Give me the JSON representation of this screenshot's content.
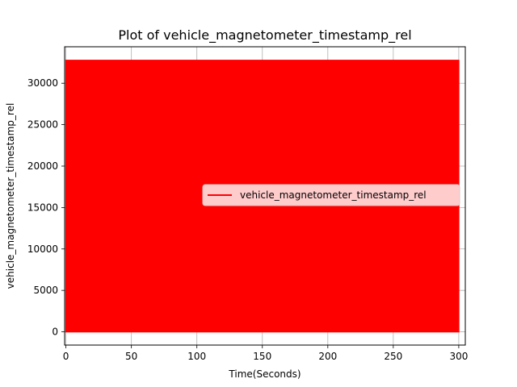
{
  "chart_data": {
    "type": "line",
    "title": "Plot of vehicle_magnetometer_timestamp_rel",
    "xlabel": "Time(Seconds)",
    "ylabel": "vehicle_magnetometer_timestamp_rel",
    "xlim": [
      -1,
      305
    ],
    "ylim": [
      -1600,
      34400
    ],
    "x_ticks": [
      0,
      50,
      100,
      150,
      200,
      250,
      300
    ],
    "y_ticks": [
      0,
      5000,
      10000,
      15000,
      20000,
      25000,
      30000
    ],
    "grid": true,
    "legend_position": "center-right",
    "series": [
      {
        "name": "vehicle_magnetometer_timestamp_rel",
        "color": "#ff0000",
        "x_range": [
          0,
          300
        ],
        "min_value": 0,
        "max_value": 32760,
        "description_of_values": "dense oscillation between min and max over full time range"
      }
    ]
  }
}
